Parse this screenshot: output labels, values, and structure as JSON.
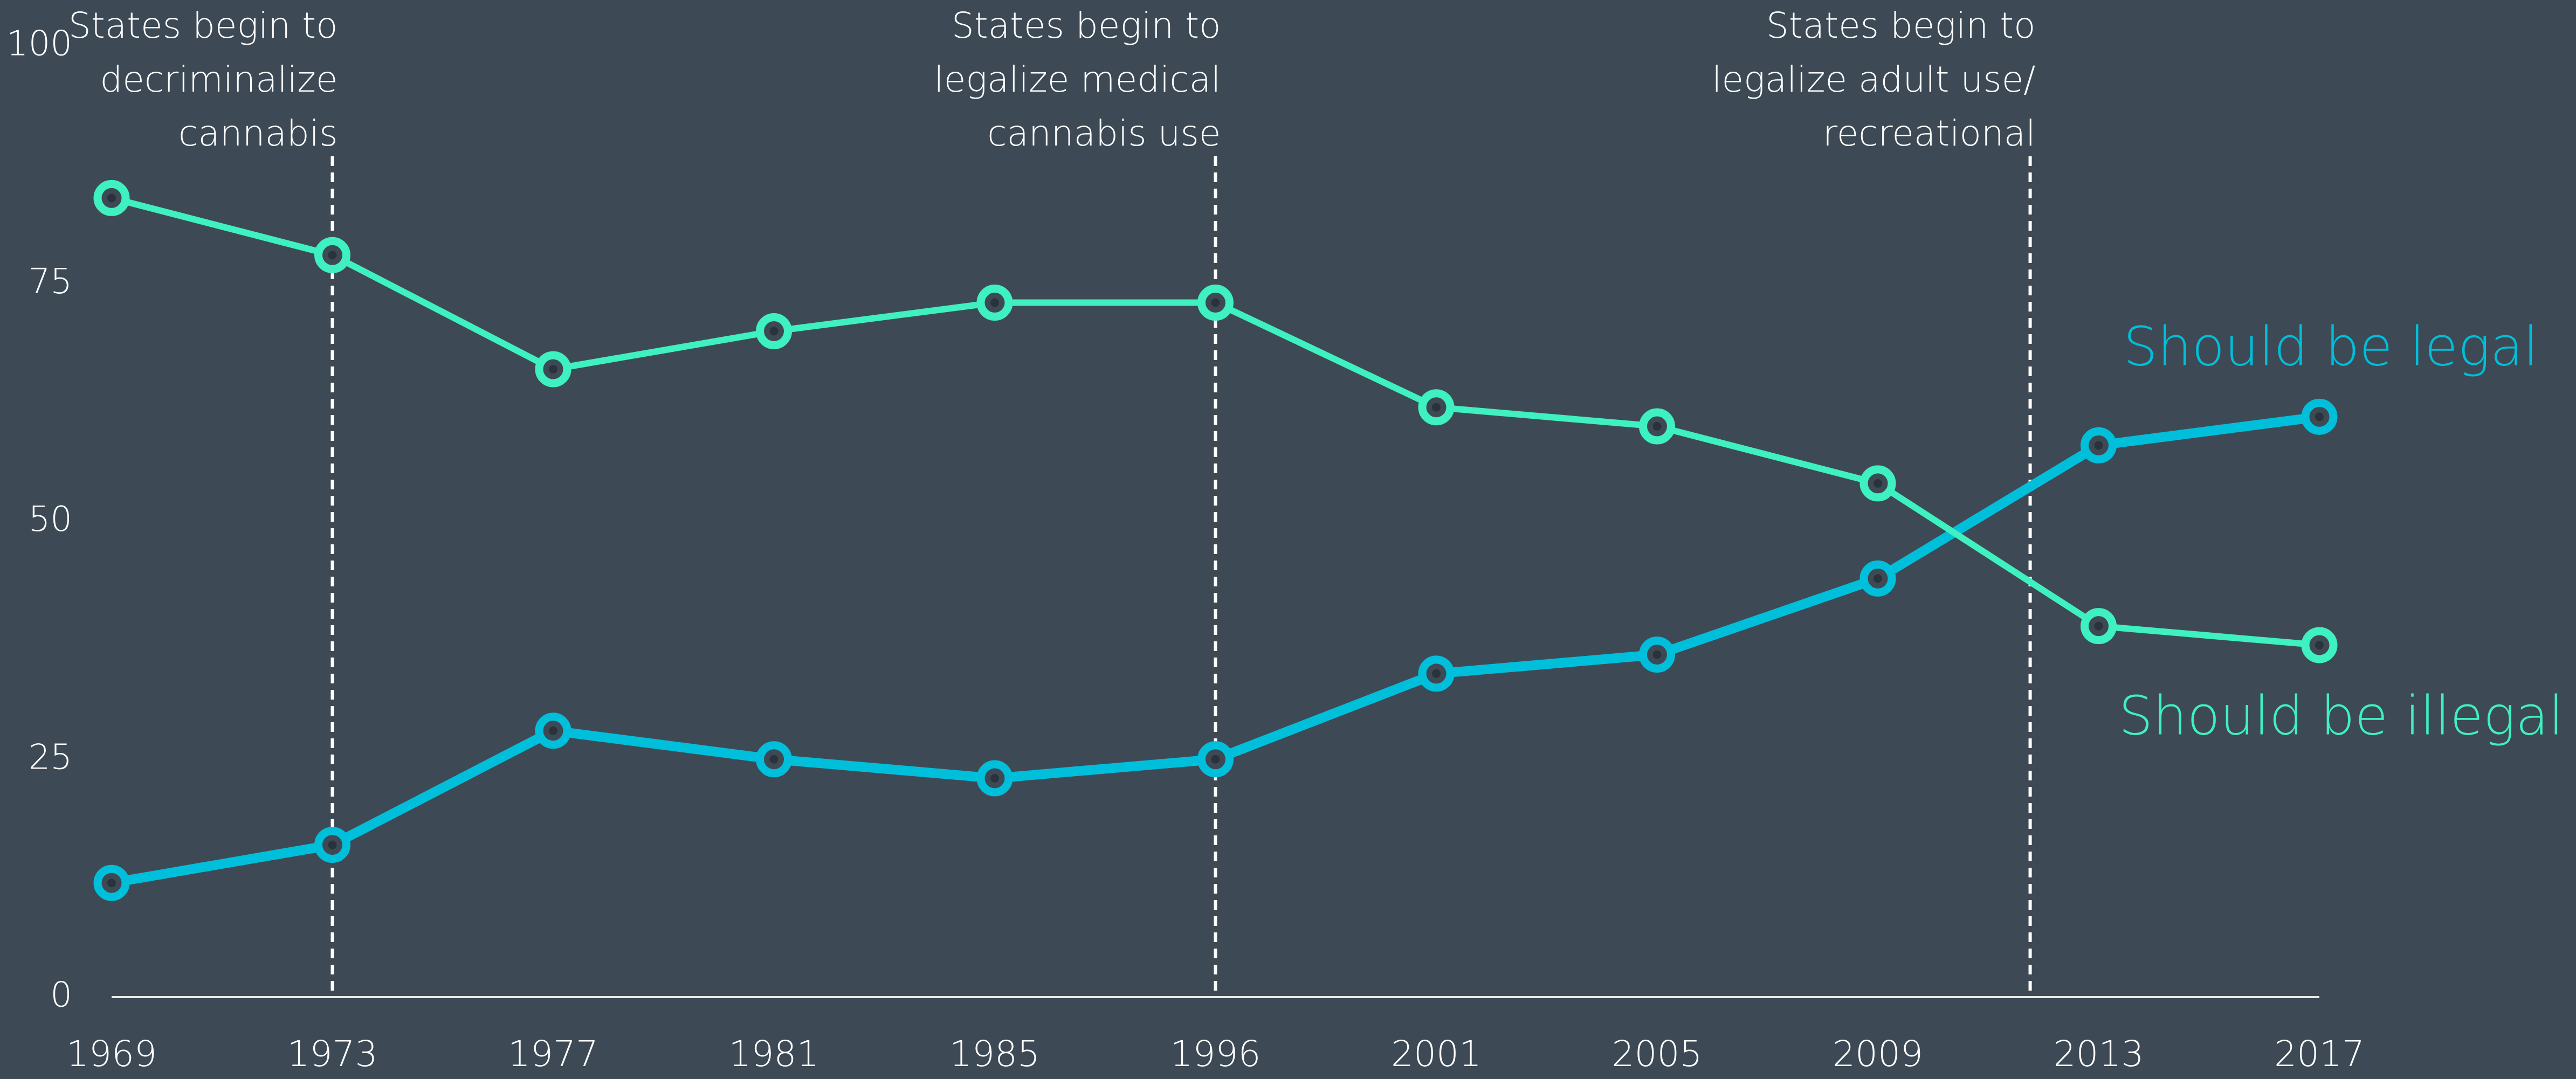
{
  "chart_data": {
    "type": "line",
    "categories": [
      "1969",
      "1973",
      "1977",
      "1981",
      "1985",
      "1996",
      "2001",
      "2005",
      "2009",
      "2013",
      "2017"
    ],
    "series": [
      {
        "name": "Should be legal",
        "color": "#00bfdb",
        "values": [
          12,
          16,
          28,
          25,
          23,
          25,
          34,
          36,
          44,
          58,
          61
        ]
      },
      {
        "name": "Should be illegal",
        "color": "#3ff0c0",
        "values": [
          84,
          78,
          66,
          70,
          73,
          73,
          62,
          60,
          54,
          39,
          37
        ]
      }
    ],
    "ylim": [
      0,
      100
    ],
    "yticks": [
      0,
      25,
      50,
      75,
      100
    ],
    "annotations": [
      [
        "States begin to",
        "decriminalize",
        "cannabis"
      ],
      [
        "States begin to",
        "legalize medical",
        "cannabis use"
      ],
      [
        "States begin to",
        "legalize adult use/",
        "recreational"
      ]
    ]
  }
}
